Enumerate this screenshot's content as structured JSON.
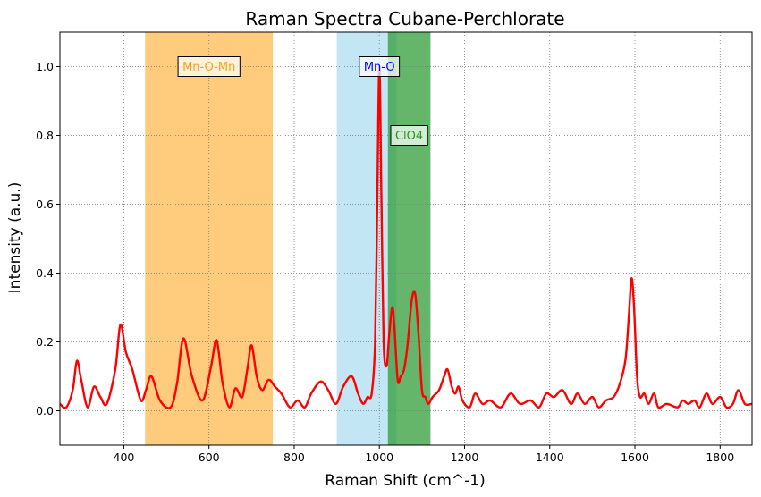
{
  "chart_data": {
    "type": "line",
    "title": "Raman Spectra Cubane-Perchlorate",
    "xlabel": "Raman Shift (cm^-1)",
    "ylabel": "Intensity (a.u.)",
    "xlim": [
      250,
      1875
    ],
    "ylim": [
      -0.1,
      1.1
    ],
    "xticks": [
      400,
      600,
      800,
      1000,
      1200,
      1400,
      1600,
      1800
    ],
    "yticks": [
      0.0,
      0.2,
      0.4,
      0.6,
      0.8,
      1.0
    ],
    "grid": true,
    "line_color": "#ff0000",
    "series": [
      {
        "x": [
          250,
          265,
          280,
          290,
          300,
          315,
          330,
          345,
          360,
          380,
          392,
          405,
          420,
          440,
          452,
          465,
          485,
          510,
          525,
          540,
          560,
          585,
          605,
          618,
          632,
          648,
          662,
          678,
          690,
          700,
          712,
          725,
          740,
          755,
          770,
          790,
          808,
          825,
          840,
          862,
          880,
          898,
          915,
          935,
          950,
          962,
          972,
          982,
          990,
          995,
          1000,
          1005,
          1010,
          1017,
          1023,
          1030,
          1035,
          1043,
          1050,
          1058,
          1066,
          1076,
          1084,
          1092,
          1100,
          1108,
          1115,
          1125,
          1140,
          1152,
          1160,
          1170,
          1178,
          1186,
          1195,
          1212,
          1225,
          1242,
          1260,
          1285,
          1308,
          1330,
          1355,
          1375,
          1392,
          1410,
          1430,
          1450,
          1465,
          1482,
          1500,
          1515,
          1532,
          1550,
          1565,
          1578,
          1586,
          1592,
          1598,
          1605,
          1612,
          1622,
          1632,
          1645,
          1655,
          1675,
          1700,
          1712,
          1725,
          1740,
          1752,
          1768,
          1782,
          1800,
          1815,
          1830,
          1843,
          1858,
          1875
        ],
        "y": [
          0.02,
          0.01,
          0.06,
          0.145,
          0.09,
          0.01,
          0.07,
          0.04,
          0.02,
          0.12,
          0.25,
          0.17,
          0.12,
          0.03,
          0.06,
          0.1,
          0.03,
          0.01,
          0.08,
          0.21,
          0.1,
          0.03,
          0.13,
          0.205,
          0.08,
          0.01,
          0.065,
          0.04,
          0.12,
          0.19,
          0.1,
          0.06,
          0.09,
          0.07,
          0.05,
          0.01,
          0.03,
          0.01,
          0.05,
          0.085,
          0.06,
          0.02,
          0.07,
          0.1,
          0.05,
          0.02,
          0.04,
          0.05,
          0.2,
          0.6,
          1.0,
          0.6,
          0.2,
          0.13,
          0.22,
          0.3,
          0.25,
          0.09,
          0.1,
          0.12,
          0.19,
          0.32,
          0.34,
          0.22,
          0.06,
          0.04,
          0.02,
          0.04,
          0.06,
          0.1,
          0.12,
          0.07,
          0.05,
          0.07,
          0.03,
          0.01,
          0.05,
          0.02,
          0.03,
          0.01,
          0.05,
          0.02,
          0.03,
          0.01,
          0.05,
          0.04,
          0.06,
          0.02,
          0.05,
          0.02,
          0.04,
          0.01,
          0.03,
          0.04,
          0.08,
          0.15,
          0.28,
          0.385,
          0.3,
          0.1,
          0.04,
          0.05,
          0.02,
          0.05,
          0.01,
          0.02,
          0.01,
          0.03,
          0.02,
          0.03,
          0.01,
          0.05,
          0.02,
          0.04,
          0.01,
          0.02,
          0.06,
          0.02,
          0.02
        ]
      }
    ],
    "bands": [
      {
        "label": "Mn-O-Mn",
        "x0": 450,
        "x1": 750,
        "color": "#fdb94a",
        "text_color": "#f5a21a",
        "label_x": 600,
        "label_y": 1.0
      },
      {
        "label": "Mn-O",
        "x0": 900,
        "x1": 1040,
        "color": "#87ceeb",
        "text_color": "#0000ff",
        "label_x": 1000,
        "label_y": 1.0
      },
      {
        "label": "ClO4",
        "x0": 1020,
        "x1": 1120,
        "color": "#2a9a32",
        "text_color": "#1f9a1f",
        "label_x": 1070,
        "label_y": 0.8
      }
    ]
  }
}
